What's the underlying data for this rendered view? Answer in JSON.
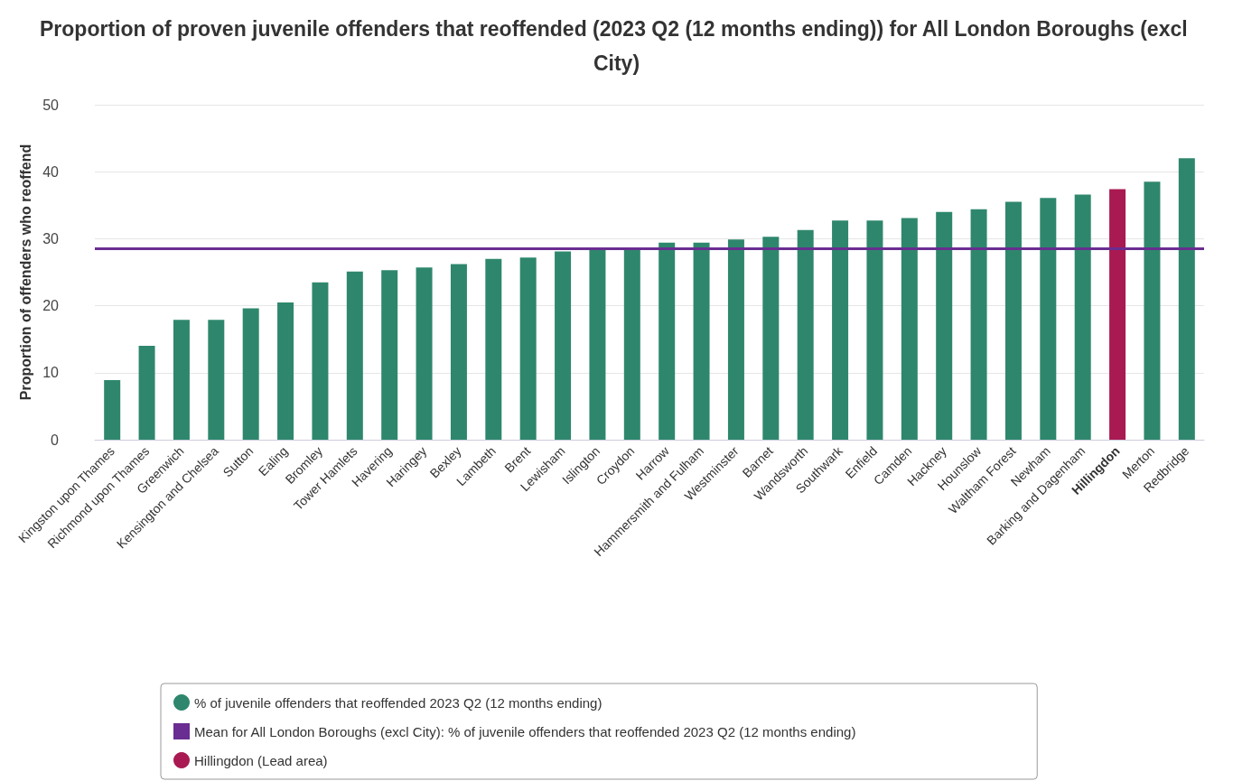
{
  "chart_data": {
    "type": "bar",
    "title": "Proportion of proven juvenile offenders that reoffended (2023 Q2 (12 months ending)) for All London Boroughs (excl City)",
    "ylabel": "Proportion of offenders who reoffend",
    "categories": [
      "Kingston upon Thames",
      "Richmond upon Thames",
      "Greenwich",
      "Kensington and Chelsea",
      "Sutton",
      "Ealing",
      "Bromley",
      "Tower Hamlets",
      "Havering",
      "Haringey",
      "Bexley",
      "Lambeth",
      "Brent",
      "Lewisham",
      "Islington",
      "Croydon",
      "Harrow",
      "Hammersmith and Fulham",
      "Westminster",
      "Barnet",
      "Wandsworth",
      "Southwark",
      "Enfield",
      "Camden",
      "Hackney",
      "Hounslow",
      "Waltham Forest",
      "Newham",
      "Barking and Dagenham",
      "Hillingdon",
      "Merton",
      "Redbridge"
    ],
    "series": [
      {
        "name": "% of juvenile offenders that reoffended 2023 Q2 (12 months ending)",
        "color": "#2e876c",
        "values": [
          8.9,
          14.0,
          17.9,
          17.9,
          19.6,
          20.5,
          23.5,
          25.1,
          25.3,
          25.7,
          26.2,
          27.0,
          27.2,
          28.1,
          28.5,
          28.6,
          29.4,
          29.4,
          29.9,
          30.3,
          31.3,
          32.7,
          32.7,
          33.1,
          34.0,
          34.4,
          35.5,
          36.1,
          36.6,
          null,
          38.5,
          42.0
        ]
      },
      {
        "name": "Hillingdon (Lead area)",
        "color": "#a91a52",
        "values": [
          null,
          null,
          null,
          null,
          null,
          null,
          null,
          null,
          null,
          null,
          null,
          null,
          null,
          null,
          null,
          null,
          null,
          null,
          null,
          null,
          null,
          null,
          null,
          null,
          null,
          null,
          null,
          null,
          null,
          37.4,
          null,
          null
        ]
      }
    ],
    "ref_lines": [
      {
        "axis": "y",
        "value": 28.5,
        "label": "Mean for All London Boroughs (excl City): % of juvenile offenders that reoffended 2023 Q2 (12 months ending)",
        "color": "#6a2d91"
      }
    ],
    "ylim": [
      0,
      50
    ],
    "yticks": [
      0,
      10,
      20,
      30,
      40,
      50
    ],
    "grid": "y",
    "legend": "bottom"
  }
}
